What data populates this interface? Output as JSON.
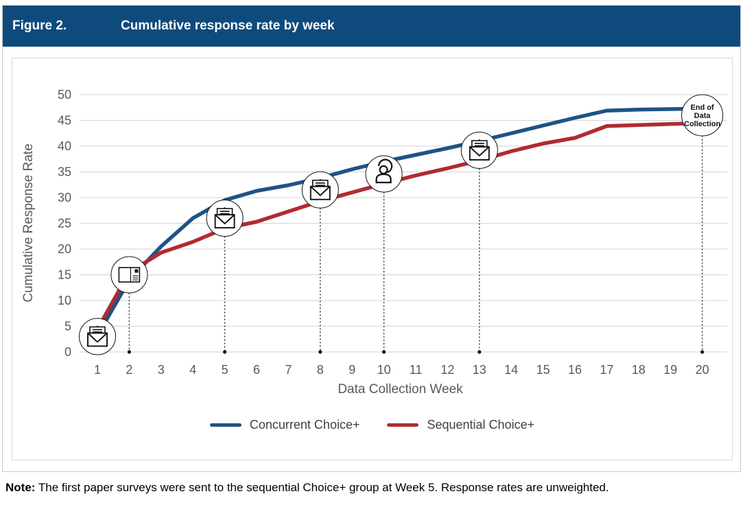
{
  "header": {
    "figure_label": "Figure 2.",
    "title": "Cumulative response rate by week",
    "bg_color": "#0F4A7C"
  },
  "chart_data": {
    "type": "line",
    "title": "Cumulative response rate by week",
    "xlabel": "Data Collection Week",
    "ylabel": "Cumulative Response Rate",
    "x": [
      1,
      2,
      3,
      4,
      5,
      6,
      7,
      8,
      9,
      10,
      11,
      12,
      13,
      14,
      15,
      16,
      17,
      18,
      19,
      20
    ],
    "ylim": [
      0,
      50
    ],
    "ytick_step": 5,
    "grid": true,
    "grid_color": "#d9d9d9",
    "tick_color": "#595959",
    "legend_position": "bottom",
    "series": [
      {
        "name": "Concurrent Choice+",
        "color": "#1E5386",
        "values": [
          3.2,
          14,
          20.5,
          26,
          29.5,
          31.3,
          32.4,
          33.8,
          35.5,
          37,
          38.3,
          39.6,
          41,
          42.5,
          44,
          45.5,
          46.9,
          47.1,
          47.2,
          47.3
        ]
      },
      {
        "name": "Sequential Choice+",
        "color": "#B12B31",
        "values": [
          4.4,
          15.5,
          19.3,
          21.4,
          24,
          25.3,
          27.3,
          29.3,
          31,
          32.7,
          34.3,
          35.7,
          37.2,
          39,
          40.5,
          41.6,
          43.9,
          44.1,
          44.3,
          44.5
        ]
      }
    ],
    "markers": [
      {
        "week": 1,
        "y": 3,
        "icon": "open-envelope-icon",
        "dropline": false
      },
      {
        "week": 2,
        "y": 15,
        "icon": "postcard-icon",
        "dropline": true
      },
      {
        "week": 5,
        "y": 26,
        "icon": "open-envelope-icon",
        "dropline": true
      },
      {
        "week": 8,
        "y": 31.5,
        "icon": "open-envelope-icon",
        "dropline": true
      },
      {
        "week": 10,
        "y": 34.6,
        "icon": "interviewer-icon",
        "dropline": true
      },
      {
        "week": 13,
        "y": 39.2,
        "icon": "open-envelope-icon",
        "dropline": true
      },
      {
        "week": 20,
        "y": 46,
        "icon": "end-of-data-collection-badge",
        "dropline": true,
        "label_lines": [
          "End of",
          "Data",
          "Collection"
        ]
      }
    ]
  },
  "note": {
    "label": "Note:",
    "text": " The first paper surveys were sent to the sequential Choice+ group at Week 5. Response rates are unweighted."
  }
}
